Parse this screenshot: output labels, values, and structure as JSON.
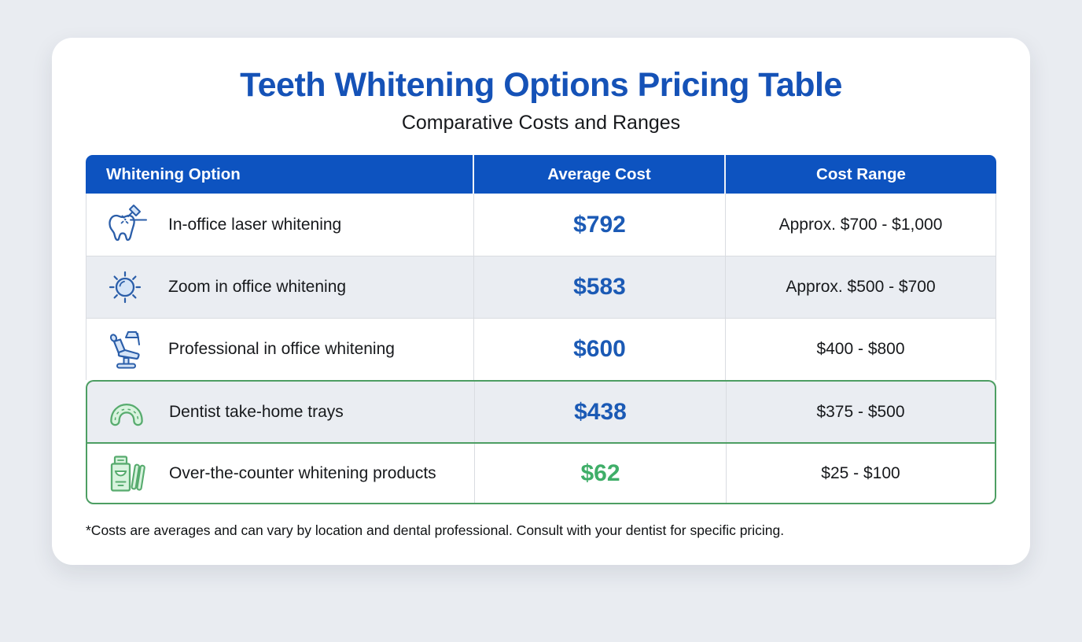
{
  "page": {
    "title": "Teeth Whitening Options Pricing Table",
    "subtitle": "Comparative Costs and Ranges",
    "footnote": "*Costs are averages and can vary by location and dental professional. Consult with your dentist for specific pricing."
  },
  "colors": {
    "header_bg": "#0d53c0",
    "title_blue": "#1552b7",
    "price_blue": "#1b5ab5",
    "price_green": "#3fae68",
    "highlight_border_green": "#4d9e63",
    "row_alt_bg": "#eaedf2",
    "icon_blue": "#2b5ea9",
    "icon_green": "#57ab6e"
  },
  "table": {
    "columns": [
      "Whitening Option",
      "Average Cost",
      "Cost Range"
    ],
    "rows": [
      {
        "icon": "tooth-laser-icon",
        "option": "In-office laser whitening",
        "average_cost": "$792",
        "cost_range": "Approx. $700 - $1,000",
        "price_color": "blue",
        "highlight": false
      },
      {
        "icon": "zoom-light-icon",
        "option": "Zoom in office whitening",
        "average_cost": "$583",
        "cost_range": "Approx. $500 - $700",
        "price_color": "blue",
        "highlight": false
      },
      {
        "icon": "dental-chair-icon",
        "option": "Professional in office whitening",
        "average_cost": "$600",
        "cost_range": "$400 - $800",
        "price_color": "blue",
        "highlight": false
      },
      {
        "icon": "dental-tray-icon",
        "option": "Dentist take-home trays",
        "average_cost": "$438",
        "cost_range": "$375 - $500",
        "price_color": "blue",
        "highlight": true
      },
      {
        "icon": "whitening-products-icon",
        "option": "Over-the-counter whitening products",
        "average_cost": "$62",
        "cost_range": "$25 - $100",
        "price_color": "green",
        "highlight": true
      }
    ]
  }
}
